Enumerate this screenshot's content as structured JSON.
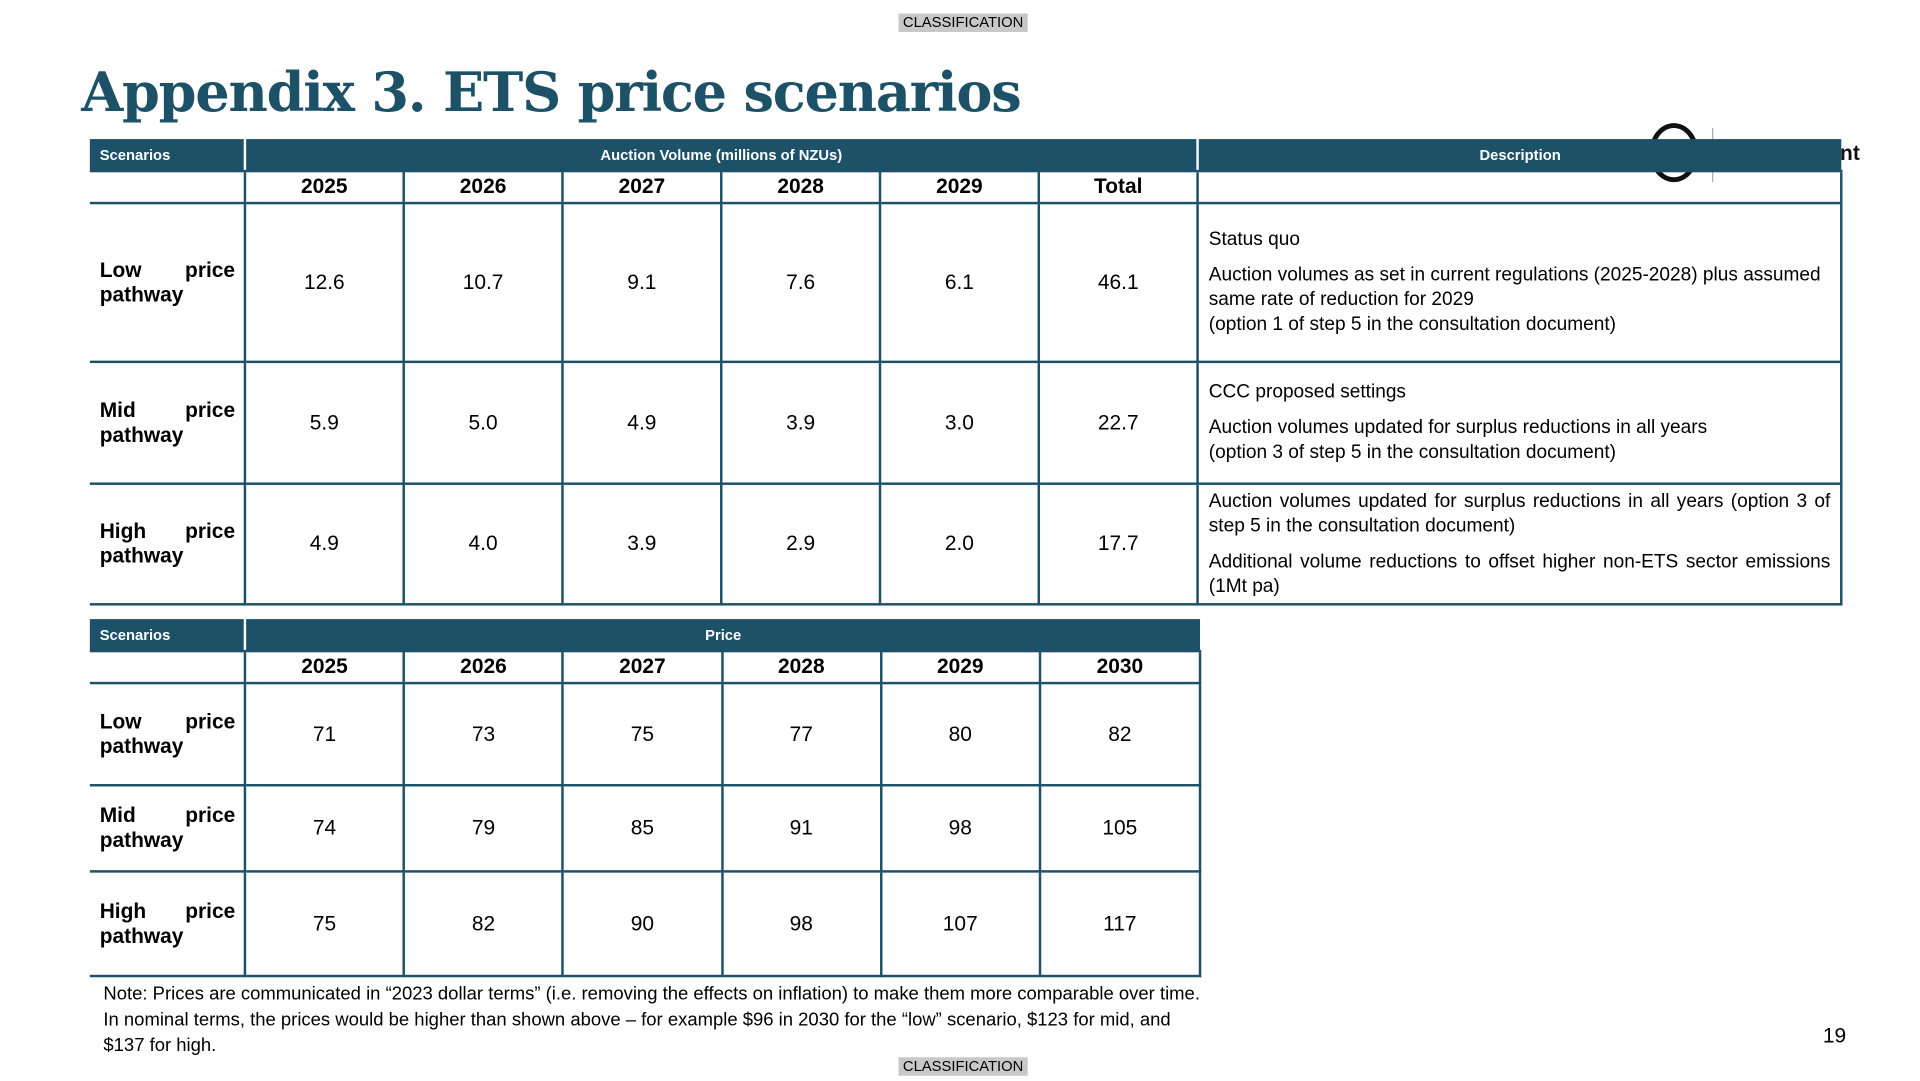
{
  "classification": "CLASSIFICATION",
  "title": "Appendix 3. ETS price scenarios",
  "logo_text": "nt",
  "volume_table": {
    "header_scenarios": "Scenarios",
    "header_group": "Auction Volume (millions of NZUs)",
    "header_description": "Description",
    "columns": [
      "2025",
      "2026",
      "2027",
      "2028",
      "2029",
      "Total"
    ],
    "rows": [
      {
        "label": "Low price pathway",
        "values": [
          "12.6",
          "10.7",
          "9.1",
          "7.6",
          "6.1",
          "46.1"
        ],
        "desc": [
          "Status quo",
          "Auction volumes as set in current regulations (2025-2028) plus assumed same rate of reduction for 2029",
          "(option 1 of step 5 in the consultation document)"
        ]
      },
      {
        "label": "Mid price pathway",
        "values": [
          "5.9",
          "5.0",
          "4.9",
          "3.9",
          "3.0",
          "22.7"
        ],
        "desc": [
          "CCC proposed settings",
          "Auction volumes updated for surplus reductions in all years",
          "(option 3 of step 5 in the consultation document)"
        ]
      },
      {
        "label": "High price pathway",
        "values": [
          "4.9",
          "4.0",
          "3.9",
          "2.9",
          "2.0",
          "17.7"
        ],
        "desc": [
          "Auction volumes updated for surplus reductions in all years (option 3 of step 5 in the consultation document)",
          "Additional volume reductions to offset higher non-ETS sector emissions (1Mt pa)"
        ]
      }
    ]
  },
  "price_table": {
    "header_scenarios": "Scenarios",
    "header_group": "Price",
    "columns": [
      "2025",
      "2026",
      "2027",
      "2028",
      "2029",
      "2030"
    ],
    "rows": [
      {
        "label": "Low price pathway",
        "values": [
          "71",
          "73",
          "75",
          "77",
          "80",
          "82"
        ]
      },
      {
        "label": "Mid price pathway",
        "values": [
          "74",
          "79",
          "85",
          "91",
          "98",
          "105"
        ]
      },
      {
        "label": "High price pathway",
        "values": [
          "75",
          "82",
          "90",
          "98",
          "107",
          "117"
        ]
      }
    ]
  },
  "note": "Note: Prices are communicated in “2023 dollar terms” (i.e. removing the effects on inflation) to make them more comparable over time. In nominal terms, the prices would be higher than shown above – for example $96 in 2030 for the “low” scenario, $123 for mid, and $137 for high.",
  "page_number": "19"
}
